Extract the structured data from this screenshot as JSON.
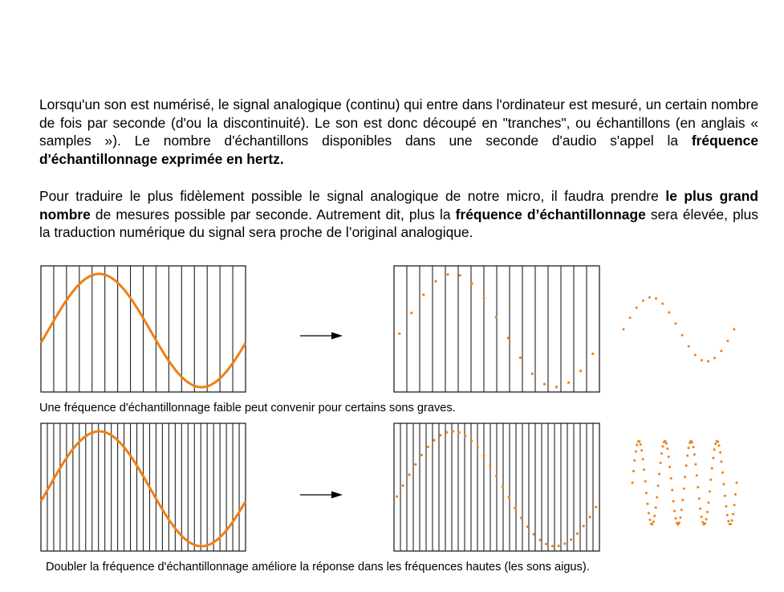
{
  "text": {
    "p1": [
      {
        "t": "Lorsqu'un son est numérisé, le signal analogique (continu) qui entre dans l'ordinateur est mesuré, un certain nombre de fois par seconde (d'ou la discontinuité). Le son est donc découpé en \"tranches\", ou échantillons (en anglais « samples »). Le nombre d'échantillons disponibles dans une seconde d'audio s'appel la ",
        "b": false
      },
      {
        "t": "fréquence d'échantillonnage exprimée en hertz.",
        "b": true
      }
    ],
    "p2": [
      {
        "t": "Pour traduire le plus fidèlement possible le signal analogique de notre micro, il faudra prendre ",
        "b": false
      },
      {
        "t": "le plus grand nombre",
        "b": true
      },
      {
        "t": " de mesures possible par seconde. Autrement dit, plus la ",
        "b": false
      },
      {
        "t": "fréquence d’échantillonnage",
        "b": true
      },
      {
        "t": " sera élevée, plus la traduction numérique du signal sera proche de l’original analogique.",
        "b": false
      }
    ],
    "caption1": "Une fréquence d'échantillonnage faible peut convenir pour certains sons graves.",
    "caption2": "Doubler la fréquence d'échantillonnage améliore la réponse dans les fréquences hautes (les sons aigus)."
  },
  "colors": {
    "signal": "#f07f12",
    "grid": "#222222",
    "arrow": "#000000"
  },
  "figures": [
    {
      "name": "low-rate",
      "sample_slices": 16,
      "dotted_cycles": 1
    },
    {
      "name": "double-rate",
      "sample_slices": 32,
      "dotted_cycles": 4
    }
  ]
}
